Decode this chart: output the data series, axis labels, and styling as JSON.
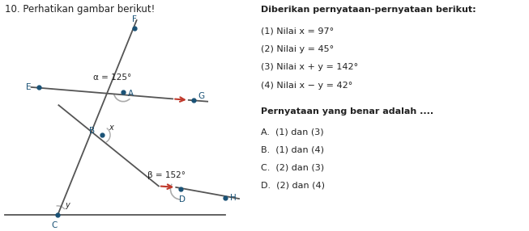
{
  "title_text": "10. Perhatikan gambar berikut!",
  "bg_color": "#ffffff",
  "line_color": "#555555",
  "dot_color": "#1a5276",
  "arrow_color": "#c0392b",
  "angle_arc_color": "#aaaaaa",
  "label_color": "#1a5276",
  "text_color": "#222222",
  "xy_label_color": "#222222",
  "alpha_label": "α = 125°",
  "beta_label": "β = 152°",
  "right_title": "Diberikan pernyataan-pernyataan berikut:",
  "statements": [
    "(1) Nilai x = 97°",
    "(2) Nilai y = 45°",
    "(3) Nilai x + y = 142°",
    "(4) Nilai x − y = 42°"
  ],
  "question": "Pernyataan yang benar adalah ....",
  "options": [
    "A.  (1) dan (3)",
    "B.  (1) dan (4)",
    "C.  (2) dan (3)",
    "D.  (2) dan (4)"
  ]
}
